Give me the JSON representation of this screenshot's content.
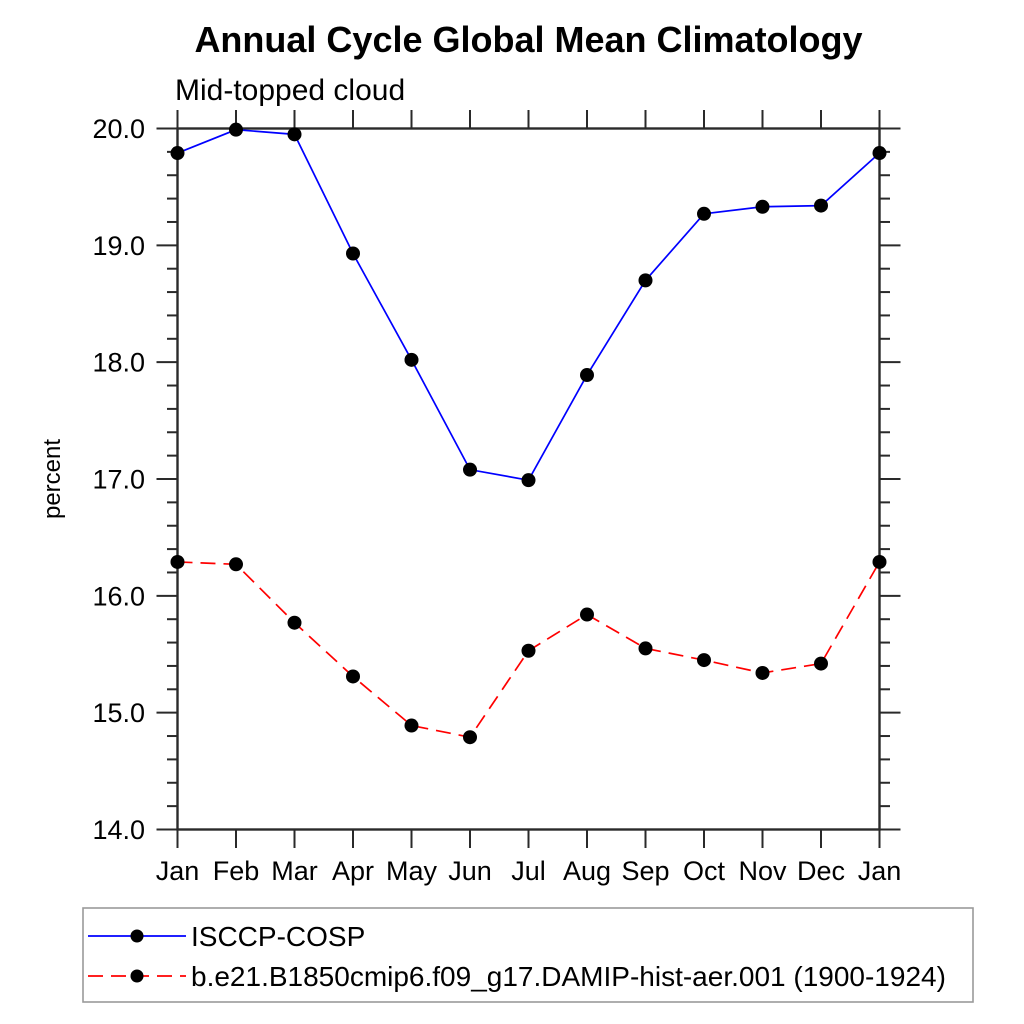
{
  "chart_data": {
    "type": "line",
    "title": "Annual Cycle Global Mean Climatology",
    "subtitle": "Mid-topped cloud",
    "xlabel": "",
    "ylabel": "percent",
    "x_categories": [
      "Jan",
      "Feb",
      "Mar",
      "Apr",
      "May",
      "Jun",
      "Jul",
      "Aug",
      "Sep",
      "Oct",
      "Nov",
      "Dec",
      "Jan"
    ],
    "ylim": [
      14.0,
      20.0
    ],
    "ytick_major_step": 1.0,
    "ytick_minor_step": 0.2,
    "ytick_labels": [
      "14.0",
      "15.0",
      "16.0",
      "17.0",
      "18.0",
      "19.0",
      "20.0"
    ],
    "grid": false,
    "frame": true,
    "legend_position": "bottom-left-box",
    "series": [
      {
        "name": "ISCCP-COSP",
        "color": "#0000ff",
        "line_style": "solid",
        "marker": "filled-circle",
        "marker_color": "#000000",
        "values": [
          19.79,
          19.99,
          19.95,
          18.93,
          18.02,
          17.08,
          16.99,
          17.89,
          18.7,
          19.27,
          19.33,
          19.34,
          19.79
        ]
      },
      {
        "name": "b.e21.B1850cmip6.f09_g17.DAMIP-hist-aer.001 (1900-1924)",
        "color": "#ff0000",
        "line_style": "dashed",
        "marker": "filled-circle",
        "marker_color": "#000000",
        "values": [
          16.29,
          16.27,
          15.77,
          15.31,
          14.89,
          14.79,
          15.53,
          15.84,
          15.55,
          15.45,
          15.34,
          15.42,
          16.29
        ]
      }
    ]
  },
  "colors": {
    "axis": "#2a2a2a",
    "background": "#ffffff",
    "legend_border": "#9a9a9a",
    "text": "#000000"
  }
}
